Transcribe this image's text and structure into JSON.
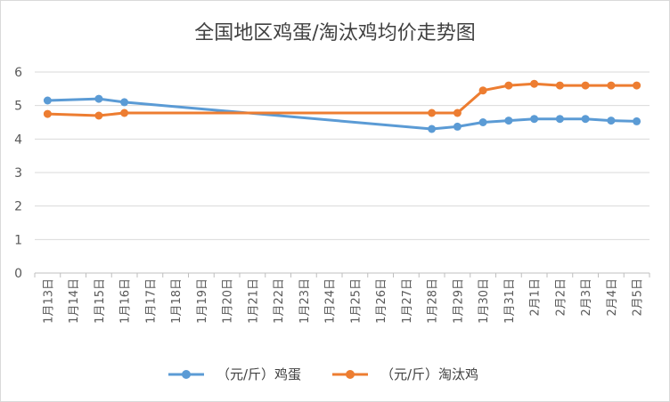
{
  "colors": {
    "egg": "#5B9BD5",
    "hen": "#ED7D31",
    "grid": "#d9d9d9",
    "axis": "#bfbfbf",
    "text": "#595959"
  },
  "chart_data": {
    "type": "line",
    "title": "全国地区鸡蛋/淘汰鸡均价走势图",
    "xlabel": "",
    "ylabel": "",
    "ylim": [
      0,
      6
    ],
    "yticks": [
      "0",
      "1",
      "2",
      "3",
      "4",
      "5",
      "6"
    ],
    "grid": true,
    "legend_position": "bottom",
    "categories": [
      "1月13日",
      "1月14日",
      "1月15日",
      "1月16日",
      "1月17日",
      "1月18日",
      "1月19日",
      "1月20日",
      "1月21日",
      "1月22日",
      "1月23日",
      "1月24日",
      "1月25日",
      "1月26日",
      "1月27日",
      "1月28日",
      "1月29日",
      "1月30日",
      "1月31日",
      "2月1日",
      "2月2日",
      "2月3日",
      "2月4日",
      "2月5日"
    ],
    "series": [
      {
        "name": "（元/斤）鸡蛋",
        "color": "#5B9BD5",
        "values": [
          5.15,
          null,
          5.2,
          5.1,
          null,
          null,
          null,
          null,
          null,
          null,
          null,
          null,
          null,
          null,
          null,
          4.3,
          4.37,
          4.5,
          4.55,
          4.6,
          4.6,
          4.6,
          4.55,
          4.53
        ]
      },
      {
        "name": "（元/斤）淘汰鸡",
        "color": "#ED7D31",
        "values": [
          4.75,
          null,
          4.7,
          4.78,
          null,
          null,
          null,
          null,
          null,
          null,
          null,
          null,
          null,
          null,
          null,
          4.78,
          4.78,
          5.45,
          5.6,
          5.65,
          5.6,
          5.6,
          5.6,
          5.6
        ]
      }
    ]
  }
}
